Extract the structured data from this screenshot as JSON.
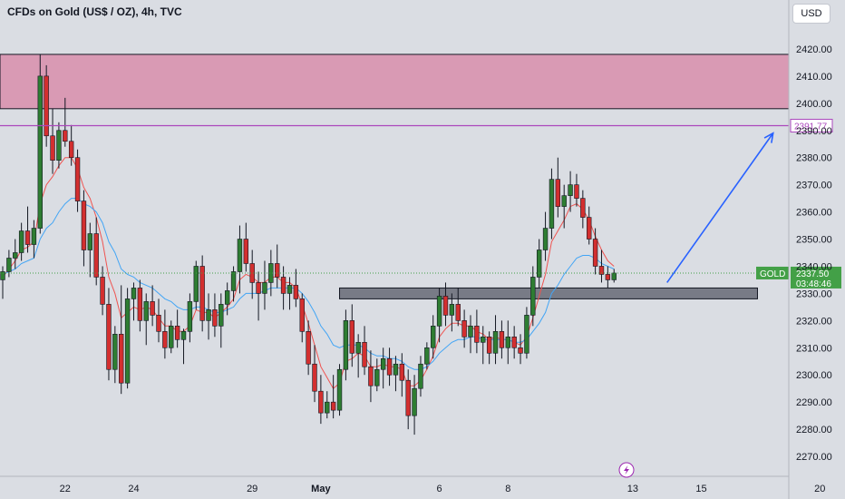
{
  "header": {
    "title": "CFDs on Gold (US$ / OZ), 4h, TVC",
    "currency_button": "USD"
  },
  "colors": {
    "bull": "#2e7d32",
    "bear": "#d32f2f",
    "ema_fast": "#ef5350",
    "ema_slow": "#42a5f5",
    "resistance_zone": "#d99ab4",
    "support_zone": "#787b86",
    "target_line": "#ab47bc",
    "arrow": "#2962ff",
    "price_tag": "#43a047",
    "background": "#dadde3"
  },
  "chart_data": {
    "type": "candlestick",
    "symbol": "GOLD",
    "timeframe": "4h",
    "ylim": [
      2263,
      2428
    ],
    "y_ticks": [
      2270,
      2280,
      2290,
      2300,
      2310,
      2320,
      2330,
      2340,
      2350,
      2360,
      2370,
      2380,
      2390,
      2400,
      2410,
      2420
    ],
    "y_tick_labels": [
      "2270.00",
      "2280.00",
      "2290.00",
      "2300.00",
      "2310.00",
      "2320.00",
      "2330.00",
      "2340.00",
      "2350.00",
      "2360.00",
      "2370.00",
      "2380.00",
      "2390.00",
      "2400.00",
      "2410.00",
      "2420.00"
    ],
    "x_labels": [
      {
        "label": "22",
        "index": 10
      },
      {
        "label": "24",
        "index": 21
      },
      {
        "label": "29",
        "index": 40
      },
      {
        "label": "May",
        "index": 51
      },
      {
        "label": "6",
        "index": 70
      },
      {
        "label": "8",
        "index": 81
      },
      {
        "label": "13",
        "index": 101
      },
      {
        "label": "15",
        "index": 112
      },
      {
        "label": "20",
        "index": 131
      }
    ],
    "candles": [
      [
        2335,
        2340,
        2328,
        2338
      ],
      [
        2338,
        2346,
        2336,
        2343
      ],
      [
        2343,
        2350,
        2339,
        2345
      ],
      [
        2345,
        2356,
        2342,
        2353
      ],
      [
        2353,
        2362,
        2345,
        2348
      ],
      [
        2348,
        2357,
        2343,
        2354
      ],
      [
        2354,
        2418,
        2352,
        2410
      ],
      [
        2410,
        2414,
        2384,
        2388
      ],
      [
        2388,
        2398,
        2374,
        2379
      ],
      [
        2379,
        2393,
        2376,
        2390
      ],
      [
        2390,
        2402,
        2384,
        2386
      ],
      [
        2386,
        2392,
        2377,
        2380
      ],
      [
        2380,
        2383,
        2360,
        2364
      ],
      [
        2364,
        2368,
        2340,
        2346
      ],
      [
        2346,
        2356,
        2336,
        2352
      ],
      [
        2352,
        2358,
        2333,
        2336
      ],
      [
        2336,
        2340,
        2322,
        2326
      ],
      [
        2326,
        2332,
        2298,
        2302
      ],
      [
        2302,
        2318,
        2297,
        2315
      ],
      [
        2315,
        2333,
        2293,
        2297
      ],
      [
        2297,
        2332,
        2295,
        2328
      ],
      [
        2328,
        2334,
        2320,
        2332
      ],
      [
        2332,
        2335,
        2316,
        2320
      ],
      [
        2320,
        2330,
        2311,
        2327
      ],
      [
        2327,
        2333,
        2318,
        2322
      ],
      [
        2322,
        2328,
        2312,
        2316
      ],
      [
        2316,
        2324,
        2306,
        2310
      ],
      [
        2310,
        2320,
        2308,
        2318
      ],
      [
        2318,
        2324,
        2310,
        2313
      ],
      [
        2313,
        2317,
        2304,
        2316
      ],
      [
        2316,
        2330,
        2312,
        2327
      ],
      [
        2327,
        2342,
        2324,
        2340
      ],
      [
        2340,
        2344,
        2316,
        2320
      ],
      [
        2320,
        2330,
        2313,
        2324
      ],
      [
        2324,
        2330,
        2314,
        2318
      ],
      [
        2318,
        2330,
        2310,
        2326
      ],
      [
        2326,
        2334,
        2322,
        2331
      ],
      [
        2331,
        2340,
        2327,
        2338
      ],
      [
        2338,
        2355,
        2330,
        2350
      ],
      [
        2350,
        2356,
        2338,
        2341
      ],
      [
        2341,
        2346,
        2328,
        2334
      ],
      [
        2334,
        2338,
        2320,
        2330
      ],
      [
        2330,
        2342,
        2324,
        2334
      ],
      [
        2334,
        2346,
        2329,
        2341
      ],
      [
        2341,
        2348,
        2332,
        2336
      ],
      [
        2336,
        2340,
        2324,
        2330
      ],
      [
        2330,
        2336,
        2324,
        2333
      ],
      [
        2333,
        2339,
        2325,
        2328
      ],
      [
        2328,
        2330,
        2312,
        2316
      ],
      [
        2316,
        2320,
        2300,
        2304
      ],
      [
        2304,
        2311,
        2290,
        2294
      ],
      [
        2294,
        2300,
        2282,
        2286
      ],
      [
        2286,
        2294,
        2284,
        2290
      ],
      [
        2290,
        2300,
        2284,
        2287
      ],
      [
        2287,
        2304,
        2285,
        2302
      ],
      [
        2302,
        2324,
        2298,
        2320
      ],
      [
        2320,
        2326,
        2303,
        2308
      ],
      [
        2308,
        2315,
        2299,
        2312
      ],
      [
        2312,
        2318,
        2300,
        2303
      ],
      [
        2303,
        2309,
        2290,
        2296
      ],
      [
        2296,
        2306,
        2294,
        2302
      ],
      [
        2302,
        2310,
        2295,
        2306
      ],
      [
        2306,
        2310,
        2296,
        2300
      ],
      [
        2300,
        2307,
        2294,
        2304
      ],
      [
        2304,
        2308,
        2292,
        2298
      ],
      [
        2298,
        2302,
        2280,
        2285
      ],
      [
        2285,
        2300,
        2278,
        2295
      ],
      [
        2295,
        2307,
        2292,
        2304
      ],
      [
        2304,
        2312,
        2302,
        2310
      ],
      [
        2310,
        2322,
        2306,
        2318
      ],
      [
        2318,
        2332,
        2312,
        2329
      ],
      [
        2329,
        2334,
        2318,
        2322
      ],
      [
        2322,
        2330,
        2316,
        2326
      ],
      [
        2326,
        2332,
        2318,
        2320
      ],
      [
        2320,
        2324,
        2310,
        2314
      ],
      [
        2314,
        2322,
        2308,
        2318
      ],
      [
        2318,
        2324,
        2308,
        2312
      ],
      [
        2312,
        2318,
        2304,
        2314
      ],
      [
        2314,
        2316,
        2304,
        2308
      ],
      [
        2308,
        2322,
        2304,
        2316
      ],
      [
        2316,
        2320,
        2306,
        2310
      ],
      [
        2310,
        2320,
        2304,
        2314
      ],
      [
        2314,
        2318,
        2306,
        2310
      ],
      [
        2310,
        2315,
        2304,
        2308
      ],
      [
        2308,
        2325,
        2306,
        2322
      ],
      [
        2322,
        2340,
        2318,
        2336
      ],
      [
        2336,
        2350,
        2332,
        2346
      ],
      [
        2346,
        2360,
        2342,
        2354
      ],
      [
        2354,
        2376,
        2350,
        2372
      ],
      [
        2372,
        2380,
        2358,
        2362
      ],
      [
        2362,
        2370,
        2354,
        2366
      ],
      [
        2366,
        2375,
        2360,
        2370
      ],
      [
        2370,
        2374,
        2362,
        2365
      ],
      [
        2365,
        2368,
        2354,
        2358
      ],
      [
        2358,
        2362,
        2348,
        2350
      ],
      [
        2350,
        2354,
        2337,
        2340
      ],
      [
        2340,
        2346,
        2334,
        2337
      ],
      [
        2337,
        2340,
        2332,
        2335
      ],
      [
        2335,
        2339,
        2334,
        2337.5
      ]
    ],
    "series": [
      {
        "name": "EMA fast",
        "color": "#ef5350",
        "values": [
          2336,
          2339,
          2342,
          2346,
          2347,
          2349,
          2363,
          2370,
          2373,
          2377,
          2380,
          2380,
          2376,
          2369,
          2365,
          2358,
          2349,
          2336,
          2330,
          2321,
          2323,
          2325,
          2324,
          2325,
          2324,
          2321,
          2318,
          2318,
          2316,
          2316,
          2318,
          2324,
          2323,
          2323,
          2321,
          2323,
          2325,
          2328,
          2335,
          2337,
          2336,
          2334,
          2334,
          2336,
          2336,
          2334,
          2334,
          2332,
          2326,
          2319,
          2311,
          2303,
          2299,
          2295,
          2297,
          2305,
          2306,
          2308,
          2307,
          2303,
          2303,
          2304,
          2303,
          2303,
          2302,
          2296,
          2296,
          2298,
          2302,
          2307,
          2314,
          2317,
          2319,
          2319,
          2318,
          2318,
          2316,
          2315,
          2313,
          2314,
          2313,
          2313,
          2312,
          2311,
          2314,
          2321,
          2329,
          2337,
          2349,
          2353,
          2357,
          2362,
          2363,
          2361,
          2357,
          2351,
          2346,
          2342,
          2340
        ]
      },
      {
        "name": "EMA slow",
        "color": "#42a5f5",
        "values": [
          2337,
          2338,
          2339,
          2341,
          2342,
          2343,
          2350,
          2354,
          2356,
          2360,
          2363,
          2365,
          2365,
          2363,
          2362,
          2360,
          2356,
          2349,
          2345,
          2339,
          2337,
          2336,
          2334,
          2333,
          2332,
          2330,
          2328,
          2327,
          2325,
          2324,
          2324,
          2325,
          2325,
          2324,
          2323,
          2323,
          2324,
          2325,
          2328,
          2330,
          2330,
          2330,
          2331,
          2332,
          2332,
          2332,
          2332,
          2332,
          2330,
          2327,
          2323,
          2318,
          2315,
          2311,
          2310,
          2311,
          2311,
          2311,
          2310,
          2308,
          2307,
          2307,
          2306,
          2306,
          2305,
          2303,
          2302,
          2302,
          2303,
          2305,
          2308,
          2310,
          2312,
          2313,
          2313,
          2314,
          2314,
          2313,
          2313,
          2313,
          2313,
          2313,
          2312,
          2312,
          2313,
          2316,
          2319,
          2323,
          2330,
          2333,
          2337,
          2340,
          2343,
          2344,
          2344,
          2343,
          2341,
          2340,
          2339
        ]
      }
    ],
    "zones": {
      "resistance": {
        "from": 2398,
        "to": 2418
      },
      "support": {
        "from": 2328,
        "to": 2332
      }
    },
    "target_line": {
      "value": 2391.77,
      "label": "2391.77"
    },
    "current_price": {
      "symbol": "GOLD",
      "value": "2337.50",
      "countdown": "03:48:46",
      "level": 2337.5
    },
    "projection_arrow": {
      "from_index": 106.5,
      "from_value": 2334,
      "to_index": 123.5,
      "to_value": 2389
    }
  },
  "indicators": {
    "bolt_icon": "lightning-icon"
  }
}
